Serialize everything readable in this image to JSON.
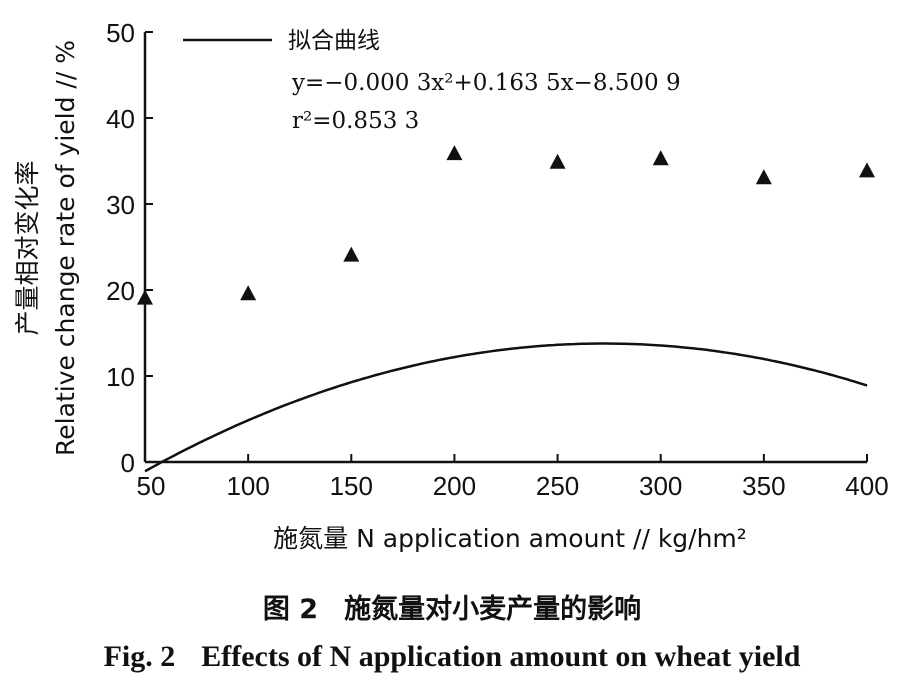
{
  "chart_data": {
    "type": "scatter",
    "xlabel": "施氮量 N application amount // kg/hm²",
    "ylabel_cn": "产量相对变化率",
    "ylabel_en": "Relative change rate of yield // %",
    "xlim": [
      50,
      400
    ],
    "ylim": [
      0,
      50
    ],
    "x_ticks": [
      50,
      100,
      150,
      200,
      250,
      300,
      350,
      400
    ],
    "y_ticks": [
      0,
      10,
      20,
      30,
      40,
      50
    ],
    "series": [
      {
        "x": [
          50,
          100,
          150,
          200,
          250,
          300,
          350,
          400
        ],
        "y": [
          19,
          19.5,
          24,
          35.8,
          34.8,
          35.2,
          33,
          33.8
        ],
        "marker": "triangle"
      }
    ],
    "fit": {
      "name": "拟合曲线",
      "a": -0.0003,
      "b": 0.1635,
      "c": -8.5009,
      "x_range": [
        50,
        400
      ]
    },
    "annotations": {
      "equation": "y=−0.000 3x²+0.163 5x−8.500 9",
      "r2": "r²=0.853 3"
    },
    "grid": false,
    "legend_position": "top-left"
  },
  "caption": {
    "cn_number": "图 2",
    "cn_title": "施氮量对小麦产量的影响",
    "en_number": "Fig. 2",
    "en_title": "Effects of N application amount on wheat yield"
  },
  "colors": {
    "ink": "#111111",
    "background": "#ffffff"
  }
}
